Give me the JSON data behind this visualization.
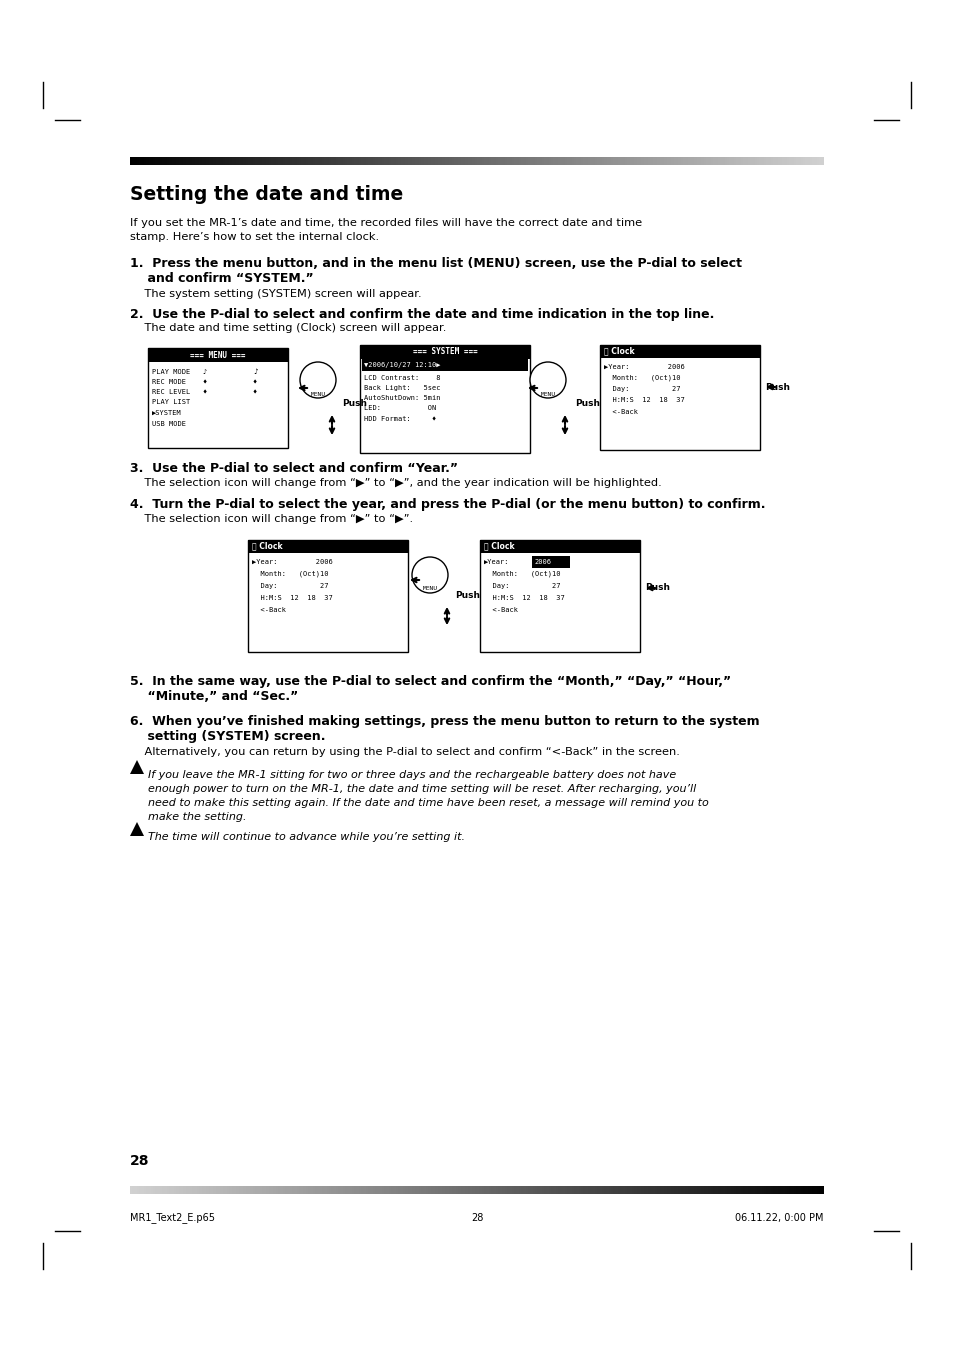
{
  "bg_color": "#ffffff",
  "page_width": 9.54,
  "page_height": 13.51,
  "title": "Setting the date and time",
  "intro_line1": "If you set the MR-1’s date and time, the recorded files will have the correct date and time",
  "intro_line2": "stamp. Here’s how to set the internal clock.",
  "step1_bold1": "1.  Press the menu button, and in the menu list (MENU) screen, use the P-dial to select",
  "step1_bold2": "    and confirm “SYSTEM.”",
  "step1_normal": "    The system setting (SYSTEM) screen will appear.",
  "step2_bold": "2.  Use the P-dial to select and confirm the date and time indication in the top line.",
  "step2_normal": "    The date and time setting (Clock) screen will appear.",
  "step3_bold": "3.  Use the P-dial to select and confirm “Year.”",
  "step3_normal": "    The selection icon will change from “▶” to “▶”, and the year indication will be highlighted.",
  "step4_bold": "4.  Turn the P-dial to select the year, and press the P-dial (or the menu button) to confirm.",
  "step4_normal": "    The selection icon will change from “▶” to “▶”.",
  "step5_bold1": "5.  In the same way, use the P-dial to select and confirm the “Month,” “Day,” “Hour,”",
  "step5_bold2": "    “Minute,” and “Sec.”",
  "step6_bold1": "6.  When you’ve finished making settings, press the menu button to return to the system",
  "step6_bold2": "    setting (SYSTEM) screen.",
  "step6_normal": "    Alternatively, you can return by using the P-dial to select and confirm “<-Back” in the screen.",
  "note1_line1": "If you leave the MR-1 sitting for two or three days and the rechargeable battery does not have",
  "note1_line2": "enough power to turn on the MR-1, the date and time setting will be reset. After recharging, you’ll",
  "note1_line3": "need to make this setting again. If the date and time have been reset, a message will remind you to",
  "note1_line4": "make the setting.",
  "note2": "The time will continue to advance while you’re setting it.",
  "page_num": "28",
  "footer_left": "MR1_Text2_E.p65",
  "footer_center": "28",
  "footer_right": "06.11.22, 0:00 PM"
}
